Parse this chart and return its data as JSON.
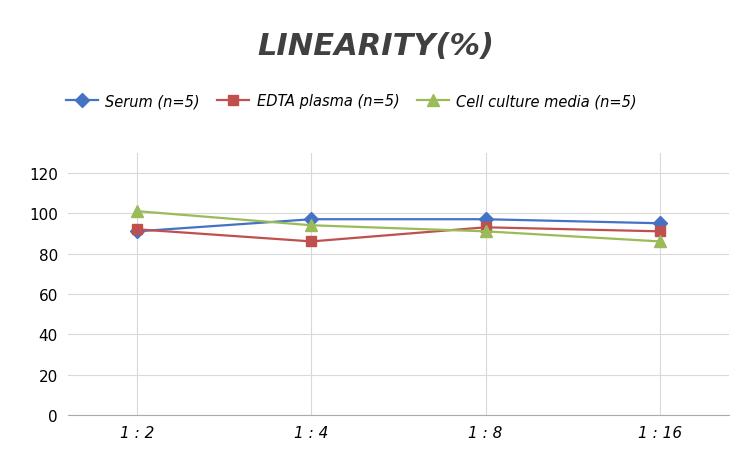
{
  "title": "LINEARITY(%)",
  "x_labels": [
    "1 : 2",
    "1 : 4",
    "1 : 8",
    "1 : 16"
  ],
  "x_positions": [
    0,
    1,
    2,
    3
  ],
  "series": [
    {
      "label": "Serum (n=5)",
      "values": [
        91,
        97,
        97,
        95
      ],
      "color": "#4472C4",
      "marker": "D",
      "marker_size": 7,
      "linewidth": 1.6
    },
    {
      "label": "EDTA plasma (n=5)",
      "values": [
        92,
        86,
        93,
        91
      ],
      "color": "#C0504D",
      "marker": "s",
      "marker_size": 7,
      "linewidth": 1.6
    },
    {
      "label": "Cell culture media (n=5)",
      "values": [
        101,
        94,
        91,
        86
      ],
      "color": "#9BBB59",
      "marker": "^",
      "marker_size": 8,
      "linewidth": 1.6
    }
  ],
  "ylim": [
    0,
    130
  ],
  "yticks": [
    0,
    20,
    40,
    60,
    80,
    100,
    120
  ],
  "grid_color": "#D9D9D9",
  "background_color": "#FFFFFF",
  "title_fontsize": 22,
  "legend_fontsize": 10.5,
  "tick_fontsize": 11
}
